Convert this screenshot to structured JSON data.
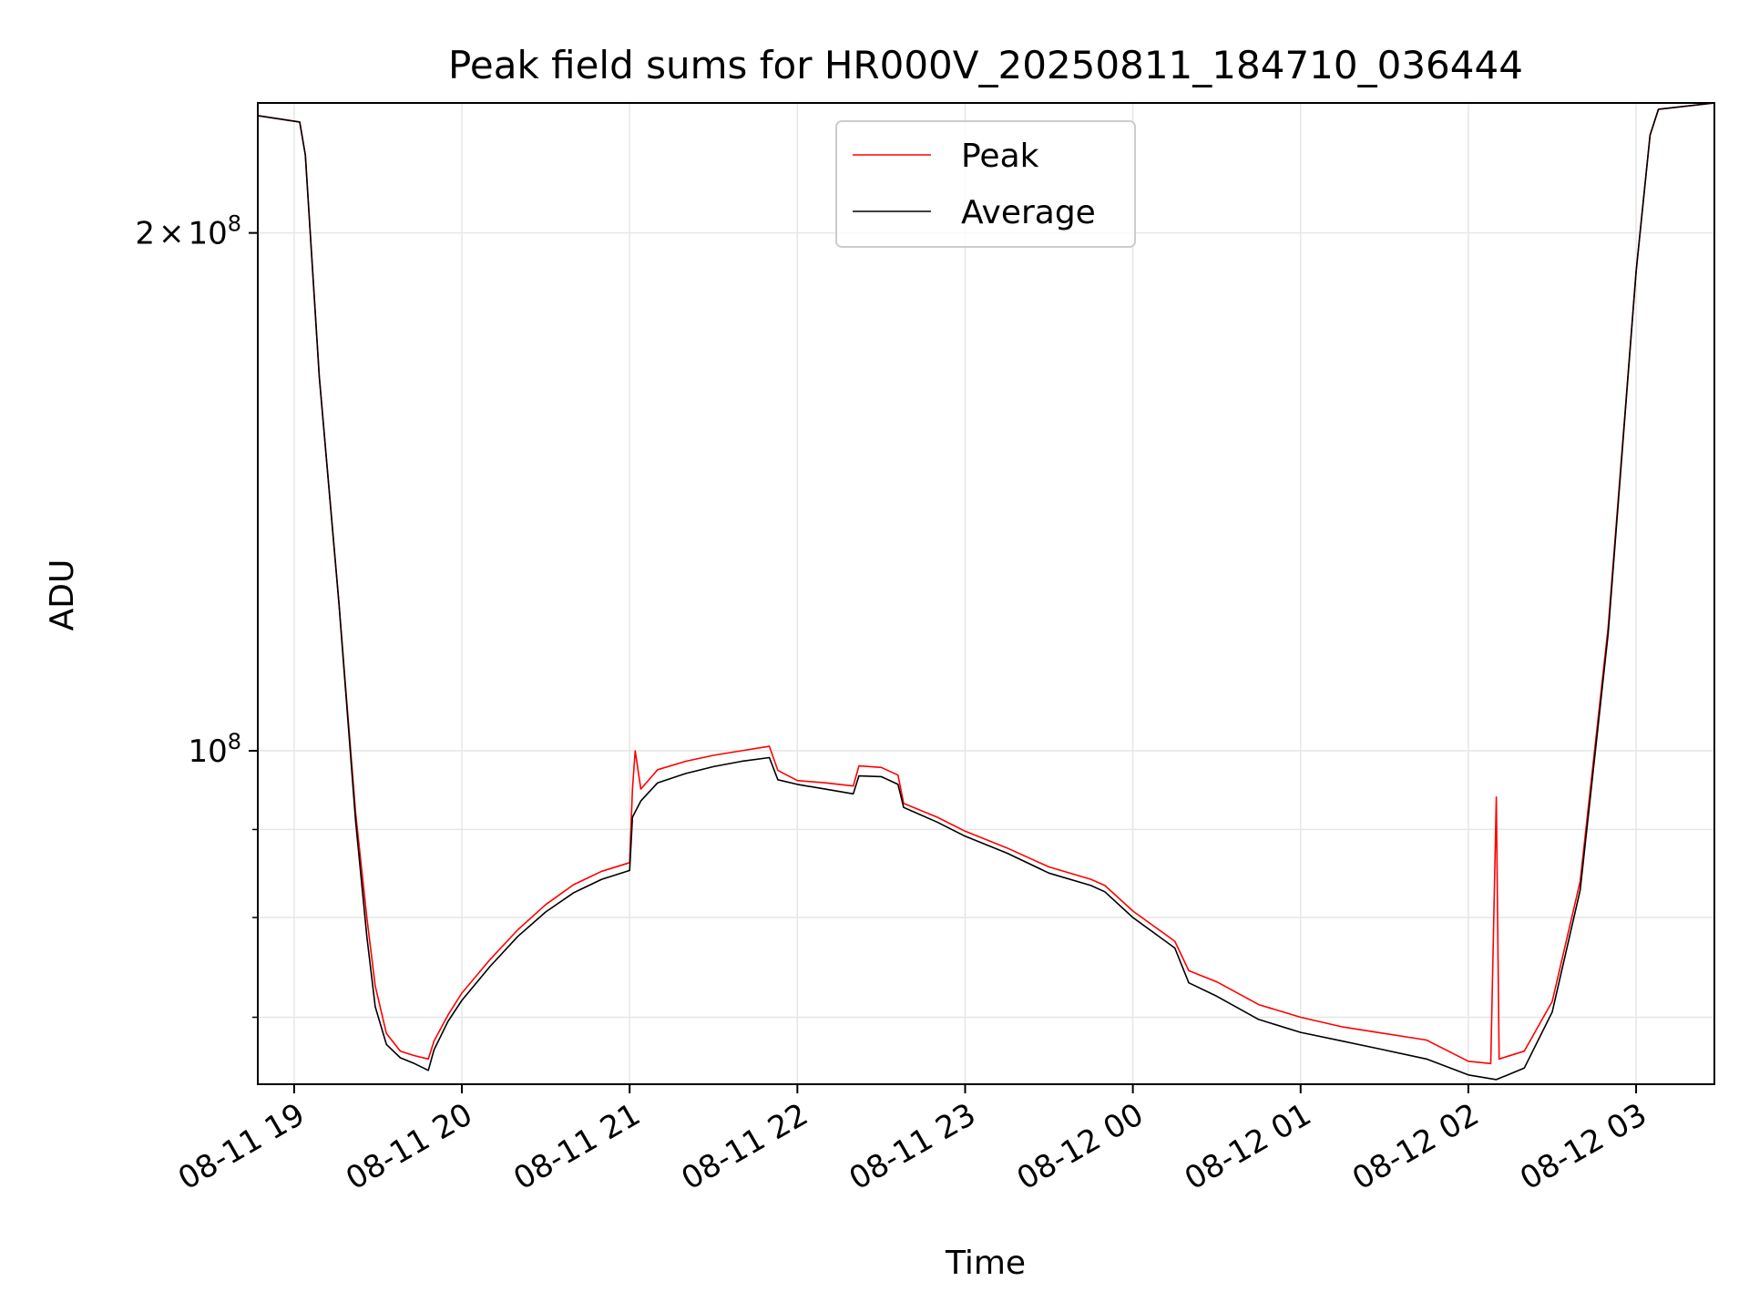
{
  "chart_data": {
    "type": "line",
    "title": "Peak field sums for HR000V_20250811_184710_036444",
    "xlabel": "Time",
    "ylabel": "ADU",
    "x_range": [
      "2025-08-11T18:47",
      "2025-08-12T03:28"
    ],
    "ylim": [
      64000000,
      238000000
    ],
    "y_scale": "log",
    "grid": true,
    "legend_position": "top-center",
    "x_ticks": [
      {
        "value": "2025-08-11T19:00",
        "label": "08-11 19"
      },
      {
        "value": "2025-08-11T20:00",
        "label": "08-11 20"
      },
      {
        "value": "2025-08-11T21:00",
        "label": "08-11 21"
      },
      {
        "value": "2025-08-11T22:00",
        "label": "08-11 22"
      },
      {
        "value": "2025-08-11T23:00",
        "label": "08-11 23"
      },
      {
        "value": "2025-08-12T00:00",
        "label": "08-12 00"
      },
      {
        "value": "2025-08-12T01:00",
        "label": "08-12 01"
      },
      {
        "value": "2025-08-12T02:00",
        "label": "08-12 02"
      },
      {
        "value": "2025-08-12T03:00",
        "label": "08-12 03"
      }
    ],
    "y_major_ticks": [
      {
        "value": 100000000,
        "mantissa": "",
        "base": "10",
        "exponent": "8"
      },
      {
        "value": 200000000,
        "mantissa": "2",
        "base": "10",
        "exponent": "8"
      }
    ],
    "y_minor_ticks": [
      70000000,
      80000000,
      90000000,
      300000000
    ],
    "series": [
      {
        "name": "Peak",
        "color": "#ff0000",
        "points": [
          [
            "2025-08-11T18:47",
            234000000
          ],
          [
            "2025-08-11T19:02",
            232000000
          ],
          [
            "2025-08-11T19:04",
            222000000
          ],
          [
            "2025-08-11T19:09",
            165000000
          ],
          [
            "2025-08-11T19:16",
            122000000
          ],
          [
            "2025-08-11T19:22",
            92000000
          ],
          [
            "2025-08-11T19:26",
            80000000
          ],
          [
            "2025-08-11T19:29",
            73000000
          ],
          [
            "2025-08-11T19:33",
            68500000
          ],
          [
            "2025-08-11T19:38",
            66900000
          ],
          [
            "2025-08-11T19:43",
            66500000
          ],
          [
            "2025-08-11T19:48",
            66200000
          ],
          [
            "2025-08-11T19:50",
            67800000
          ],
          [
            "2025-08-11T19:55",
            70200000
          ],
          [
            "2025-08-11T20:00",
            72300000
          ],
          [
            "2025-08-11T20:10",
            75600000
          ],
          [
            "2025-08-11T20:20",
            78700000
          ],
          [
            "2025-08-11T20:30",
            81400000
          ],
          [
            "2025-08-11T20:40",
            83600000
          ],
          [
            "2025-08-11T20:50",
            85100000
          ],
          [
            "2025-08-11T21:00",
            86100000
          ],
          [
            "2025-08-11T21:01",
            95000000
          ],
          [
            "2025-08-11T21:02",
            100000000
          ],
          [
            "2025-08-11T21:04",
            95000000
          ],
          [
            "2025-08-11T21:10",
            97500000
          ],
          [
            "2025-08-11T21:20",
            98600000
          ],
          [
            "2025-08-11T21:30",
            99400000
          ],
          [
            "2025-08-11T21:40",
            100000000
          ],
          [
            "2025-08-11T21:50",
            100600000
          ],
          [
            "2025-08-11T21:53",
            97400000
          ],
          [
            "2025-08-11T22:00",
            96100000
          ],
          [
            "2025-08-11T22:10",
            95800000
          ],
          [
            "2025-08-11T22:20",
            95400000
          ],
          [
            "2025-08-11T22:22",
            98000000
          ],
          [
            "2025-08-11T22:30",
            97800000
          ],
          [
            "2025-08-11T22:36",
            96800000
          ],
          [
            "2025-08-11T22:38",
            93200000
          ],
          [
            "2025-08-11T22:50",
            91500000
          ],
          [
            "2025-08-11T23:00",
            89800000
          ],
          [
            "2025-08-11T23:15",
            87800000
          ],
          [
            "2025-08-11T23:30",
            85600000
          ],
          [
            "2025-08-11T23:45",
            84200000
          ],
          [
            "2025-08-11T23:50",
            83500000
          ],
          [
            "2025-08-12T00:00",
            80700000
          ],
          [
            "2025-08-12T00:15",
            77500000
          ],
          [
            "2025-08-12T00:20",
            74500000
          ],
          [
            "2025-08-12T00:30",
            73400000
          ],
          [
            "2025-08-12T00:45",
            71200000
          ],
          [
            "2025-08-12T01:00",
            70000000
          ],
          [
            "2025-08-12T01:15",
            69100000
          ],
          [
            "2025-08-12T01:30",
            68500000
          ],
          [
            "2025-08-12T01:45",
            67900000
          ],
          [
            "2025-08-12T02:00",
            66000000
          ],
          [
            "2025-08-12T02:08",
            65800000
          ],
          [
            "2025-08-12T02:10",
            94000000
          ],
          [
            "2025-08-12T02:11",
            66200000
          ],
          [
            "2025-08-12T02:20",
            66900000
          ],
          [
            "2025-08-12T02:30",
            71500000
          ],
          [
            "2025-08-12T02:40",
            84000000
          ],
          [
            "2025-08-12T02:50",
            118000000
          ],
          [
            "2025-08-12T03:00",
            190000000
          ],
          [
            "2025-08-12T03:05",
            228000000
          ],
          [
            "2025-08-12T03:08",
            236000000
          ],
          [
            "2025-08-12T03:28",
            238000000
          ]
        ]
      },
      {
        "name": "Average",
        "color": "#000000",
        "points": [
          [
            "2025-08-11T18:47",
            234000000
          ],
          [
            "2025-08-11T19:02",
            232000000
          ],
          [
            "2025-08-11T19:04",
            222000000
          ],
          [
            "2025-08-11T19:09",
            165000000
          ],
          [
            "2025-08-11T19:16",
            122000000
          ],
          [
            "2025-08-11T19:22",
            91000000
          ],
          [
            "2025-08-11T19:26",
            78000000
          ],
          [
            "2025-08-11T19:29",
            71000000
          ],
          [
            "2025-08-11T19:33",
            67500000
          ],
          [
            "2025-08-11T19:38",
            66300000
          ],
          [
            "2025-08-11T19:43",
            65800000
          ],
          [
            "2025-08-11T19:48",
            65200000
          ],
          [
            "2025-08-11T19:50",
            67000000
          ],
          [
            "2025-08-11T19:55",
            69600000
          ],
          [
            "2025-08-11T20:00",
            71600000
          ],
          [
            "2025-08-11T20:10",
            74900000
          ],
          [
            "2025-08-11T20:20",
            78000000
          ],
          [
            "2025-08-11T20:30",
            80600000
          ],
          [
            "2025-08-11T20:40",
            82700000
          ],
          [
            "2025-08-11T20:50",
            84200000
          ],
          [
            "2025-08-11T21:00",
            85200000
          ],
          [
            "2025-08-11T21:01",
            91500000
          ],
          [
            "2025-08-11T21:04",
            93500000
          ],
          [
            "2025-08-11T21:10",
            95800000
          ],
          [
            "2025-08-11T21:20",
            97000000
          ],
          [
            "2025-08-11T21:30",
            97900000
          ],
          [
            "2025-08-11T21:40",
            98600000
          ],
          [
            "2025-08-11T21:50",
            99100000
          ],
          [
            "2025-08-11T21:53",
            96200000
          ],
          [
            "2025-08-11T22:00",
            95600000
          ],
          [
            "2025-08-11T22:10",
            95000000
          ],
          [
            "2025-08-11T22:20",
            94400000
          ],
          [
            "2025-08-11T22:22",
            96700000
          ],
          [
            "2025-08-11T22:30",
            96600000
          ],
          [
            "2025-08-11T22:36",
            95600000
          ],
          [
            "2025-08-11T22:38",
            92700000
          ],
          [
            "2025-08-11T22:50",
            90900000
          ],
          [
            "2025-08-11T23:00",
            89200000
          ],
          [
            "2025-08-11T23:15",
            87200000
          ],
          [
            "2025-08-11T23:30",
            84900000
          ],
          [
            "2025-08-11T23:45",
            83500000
          ],
          [
            "2025-08-11T23:50",
            82800000
          ],
          [
            "2025-08-12T00:00",
            80000000
          ],
          [
            "2025-08-12T00:15",
            76800000
          ],
          [
            "2025-08-12T00:20",
            73300000
          ],
          [
            "2025-08-12T00:30",
            72000000
          ],
          [
            "2025-08-12T00:45",
            69800000
          ],
          [
            "2025-08-12T01:00",
            68600000
          ],
          [
            "2025-08-12T01:15",
            67800000
          ],
          [
            "2025-08-12T01:30",
            67000000
          ],
          [
            "2025-08-12T01:45",
            66200000
          ],
          [
            "2025-08-12T02:00",
            64800000
          ],
          [
            "2025-08-12T02:10",
            64400000
          ],
          [
            "2025-08-12T02:20",
            65400000
          ],
          [
            "2025-08-12T02:30",
            70500000
          ],
          [
            "2025-08-12T02:40",
            83000000
          ],
          [
            "2025-08-12T02:50",
            117000000
          ],
          [
            "2025-08-12T03:00",
            190000000
          ],
          [
            "2025-08-12T03:05",
            228000000
          ],
          [
            "2025-08-12T03:08",
            236000000
          ],
          [
            "2025-08-12T03:28",
            238000000
          ]
        ]
      }
    ]
  }
}
